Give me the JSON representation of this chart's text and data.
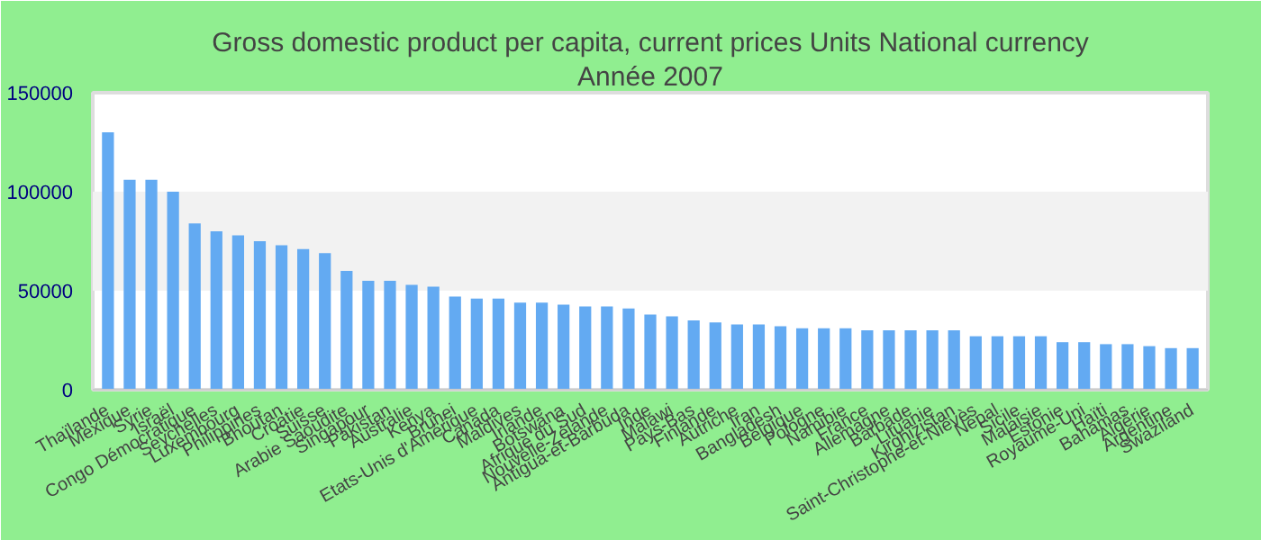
{
  "chart_data": {
    "type": "bar",
    "title": "Gross domestic product per capita, current prices Units National currency",
    "subtitle": "Année 2007",
    "categories": [
      "Thaïlande",
      "Mexique",
      "Syrie",
      "Israël",
      "Congo Démocratique",
      "Seychelles",
      "Luxembourg",
      "Philippines",
      "Bhoutan",
      "Croatie",
      "Suisse",
      "Arabie Saoudite",
      "Singapour",
      "Pakistan",
      "Australie",
      "Kenya",
      "Brunei",
      "Etats-Unis d'Amérique",
      "Canada",
      "Maldives",
      "Irlande",
      "Botswana",
      "Afrique du Sud",
      "Nouvelle-Zélande",
      "Antigua-et-Barbuda",
      "Inde",
      "Malawi",
      "Pays-Bas",
      "Finlande",
      "Autriche",
      "Iran",
      "Bangladesh",
      "Belgique",
      "Pologne",
      "Namibie",
      "France",
      "Allemagne",
      "Barbade",
      "Lituanie",
      "Kirghizistan",
      "Saint-Christophe-et-Niévès",
      "Népal",
      "Sicile",
      "Malaisie",
      "Estonie",
      "Royaume-Uni",
      "Haïti",
      "Bahamas",
      "Algérie",
      "Argentine",
      "Swaziland"
    ],
    "values": [
      130000,
      106000,
      106000,
      100000,
      84000,
      80000,
      78000,
      75000,
      73000,
      71000,
      69000,
      60000,
      55000,
      55000,
      53000,
      52000,
      47000,
      46000,
      46000,
      44000,
      44000,
      43000,
      42000,
      42000,
      41000,
      38000,
      37000,
      35000,
      34000,
      33000,
      33000,
      32000,
      31000,
      31000,
      31000,
      30000,
      30000,
      30000,
      30000,
      30000,
      27000,
      27000,
      27000,
      27000,
      24000,
      24000,
      23000,
      23000,
      22000,
      21000,
      21000
    ],
    "color": "#63aaf2",
    "ylim": [
      0,
      150000
    ],
    "yticks": [
      0,
      50000,
      100000,
      150000
    ],
    "bands": [
      {
        "axis": "y",
        "from": 50000,
        "to": 100000,
        "color": "#f2f2f2"
      }
    ]
  }
}
